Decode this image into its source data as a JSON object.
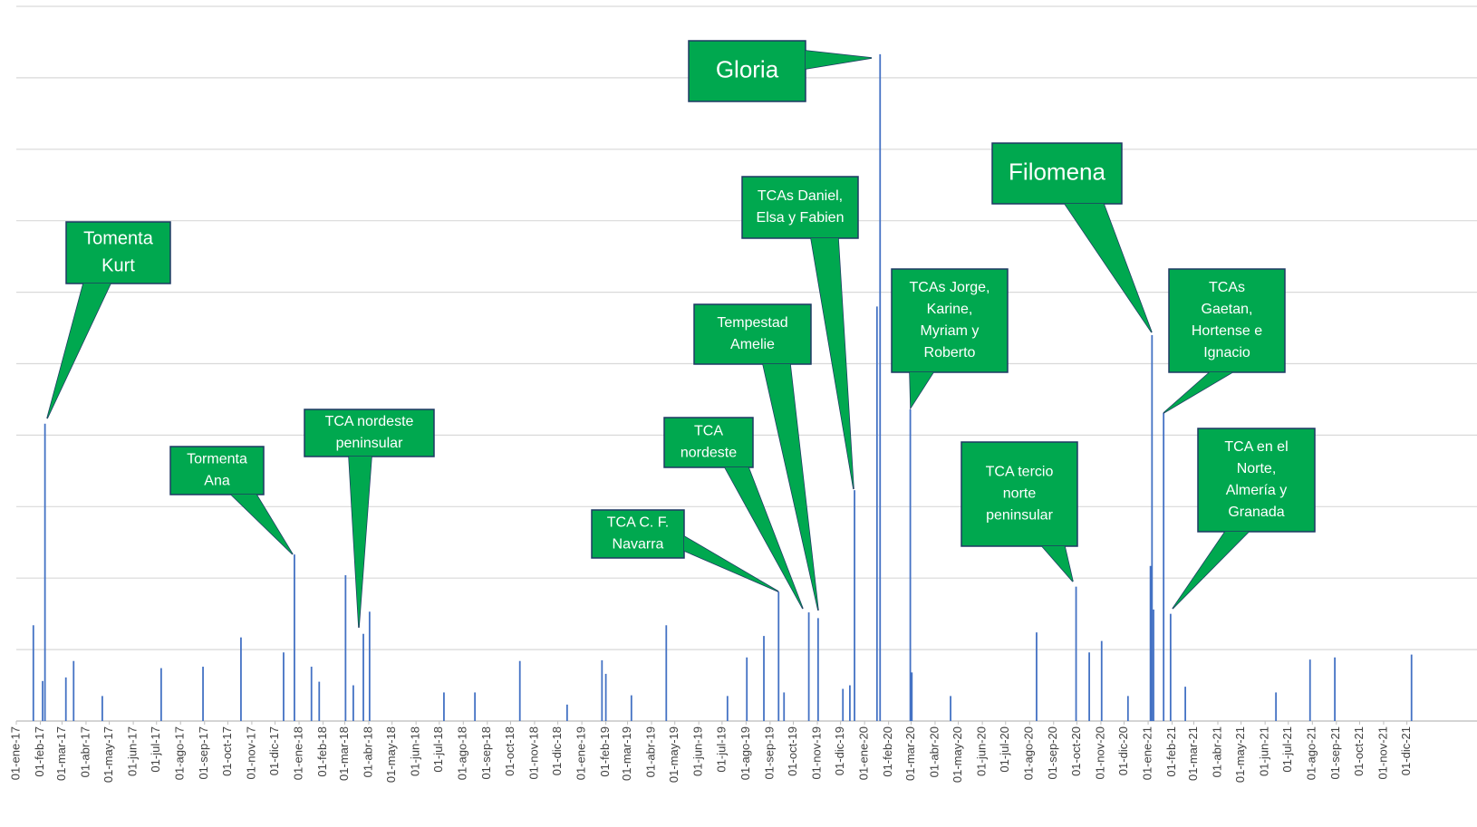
{
  "chart_data": {
    "type": "bar",
    "color": "#4472c4",
    "grid": true,
    "xlim": [
      "2017-01-01",
      "2021-12-19"
    ],
    "ylim": [
      0,
      10
    ],
    "yticks": [
      0,
      1,
      2,
      3,
      4,
      5,
      6,
      7,
      8,
      9,
      10
    ],
    "x": [
      "2017-01-23",
      "2017-02-04",
      "2017-02-07",
      "2017-03-06",
      "2017-03-16",
      "2017-04-22",
      "2017-07-07",
      "2017-08-30",
      "2017-10-18",
      "2017-12-12",
      "2017-12-26",
      "2018-01-17",
      "2018-01-27",
      "2018-03-02",
      "2018-03-12",
      "2018-03-25",
      "2018-04-02",
      "2018-07-07",
      "2018-08-16",
      "2018-10-13",
      "2018-12-13",
      "2019-01-27",
      "2019-02-01",
      "2019-03-06",
      "2019-04-20",
      "2019-07-08",
      "2019-08-02",
      "2019-08-24",
      "2019-09-12",
      "2019-09-19",
      "2019-10-21",
      "2019-11-02",
      "2019-12-04",
      "2019-12-13",
      "2019-12-19",
      "2020-01-17",
      "2020-01-21",
      "2020-02-29",
      "2020-03-02",
      "2020-04-21",
      "2020-08-10",
      "2020-09-30",
      "2020-10-17",
      "2020-11-02",
      "2020-12-06",
      "2021-01-04",
      "2021-01-06",
      "2021-01-08",
      "2021-01-21",
      "2021-01-30",
      "2021-02-18",
      "2021-06-15",
      "2021-07-29",
      "2021-08-30",
      "2021-12-07"
    ],
    "values": [
      1.34,
      0.56,
      4.16,
      0.61,
      0.84,
      0.35,
      0.74,
      0.76,
      1.17,
      0.96,
      2.33,
      0.76,
      0.55,
      2.04,
      0.5,
      1.22,
      1.53,
      0.4,
      0.4,
      0.84,
      0.23,
      0.85,
      0.66,
      0.36,
      1.34,
      0.35,
      0.89,
      1.19,
      1.81,
      0.4,
      1.52,
      1.44,
      0.45,
      0.5,
      3.23,
      5.8,
      9.33,
      4.36,
      0.68,
      0.35,
      1.24,
      1.88,
      0.96,
      1.12,
      0.35,
      2.17,
      5.4,
      1.56,
      4.31,
      1.5,
      0.48,
      0.4,
      0.86,
      0.89,
      0.93
    ],
    "xticks": [
      {
        "value": "2017-01-01",
        "label": "01-ene-17"
      },
      {
        "value": "2017-02-01",
        "label": "01-feb-17"
      },
      {
        "value": "2017-03-01",
        "label": "01-mar-17"
      },
      {
        "value": "2017-04-01",
        "label": "01-abr-17"
      },
      {
        "value": "2017-05-01",
        "label": "01-may-17"
      },
      {
        "value": "2017-06-01",
        "label": "01-jun-17"
      },
      {
        "value": "2017-07-01",
        "label": "01-jul-17"
      },
      {
        "value": "2017-08-01",
        "label": "01-ago-17"
      },
      {
        "value": "2017-09-01",
        "label": "01-sep-17"
      },
      {
        "value": "2017-10-01",
        "label": "01-oct-17"
      },
      {
        "value": "2017-11-01",
        "label": "01-nov-17"
      },
      {
        "value": "2017-12-01",
        "label": "01-dic-17"
      },
      {
        "value": "2018-01-01",
        "label": "01-ene-18"
      },
      {
        "value": "2018-02-01",
        "label": "01-feb-18"
      },
      {
        "value": "2018-03-01",
        "label": "01-mar-18"
      },
      {
        "value": "2018-04-01",
        "label": "01-abr-18"
      },
      {
        "value": "2018-05-01",
        "label": "01-may-18"
      },
      {
        "value": "2018-06-01",
        "label": "01-jun-18"
      },
      {
        "value": "2018-07-01",
        "label": "01-jul-18"
      },
      {
        "value": "2018-08-01",
        "label": "01-ago-18"
      },
      {
        "value": "2018-09-01",
        "label": "01-sep-18"
      },
      {
        "value": "2018-10-01",
        "label": "01-oct-18"
      },
      {
        "value": "2018-11-01",
        "label": "01-nov-18"
      },
      {
        "value": "2018-12-01",
        "label": "01-dic-18"
      },
      {
        "value": "2019-01-01",
        "label": "01-ene-19"
      },
      {
        "value": "2019-02-01",
        "label": "01-feb-19"
      },
      {
        "value": "2019-03-01",
        "label": "01-mar-19"
      },
      {
        "value": "2019-04-01",
        "label": "01-abr-19"
      },
      {
        "value": "2019-05-01",
        "label": "01-may-19"
      },
      {
        "value": "2019-06-01",
        "label": "01-jun-19"
      },
      {
        "value": "2019-07-01",
        "label": "01-jul-19"
      },
      {
        "value": "2019-08-01",
        "label": "01-ago-19"
      },
      {
        "value": "2019-09-01",
        "label": "01-sep-19"
      },
      {
        "value": "2019-10-01",
        "label": "01-oct-19"
      },
      {
        "value": "2019-11-01",
        "label": "01-nov-19"
      },
      {
        "value": "2019-12-01",
        "label": "01-dic-19"
      },
      {
        "value": "2020-01-01",
        "label": "01-ene-20"
      },
      {
        "value": "2020-02-01",
        "label": "01-feb-20"
      },
      {
        "value": "2020-03-01",
        "label": "01-mar-20"
      },
      {
        "value": "2020-04-01",
        "label": "01-abr-20"
      },
      {
        "value": "2020-05-01",
        "label": "01-may-20"
      },
      {
        "value": "2020-06-01",
        "label": "01-jun-20"
      },
      {
        "value": "2020-07-01",
        "label": "01-jul-20"
      },
      {
        "value": "2020-08-01",
        "label": "01-ago-20"
      },
      {
        "value": "2020-09-01",
        "label": "01-sep-20"
      },
      {
        "value": "2020-10-01",
        "label": "01-oct-20"
      },
      {
        "value": "2020-11-01",
        "label": "01-nov-20"
      },
      {
        "value": "2020-12-01",
        "label": "01-dic-20"
      },
      {
        "value": "2021-01-01",
        "label": "01-ene-21"
      },
      {
        "value": "2021-02-01",
        "label": "01-feb-21"
      },
      {
        "value": "2021-03-01",
        "label": "01-mar-21"
      },
      {
        "value": "2021-04-01",
        "label": "01-abr-21"
      },
      {
        "value": "2021-05-01",
        "label": "01-may-21"
      },
      {
        "value": "2021-06-01",
        "label": "01-jun-21"
      },
      {
        "value": "2021-07-01",
        "label": "01-jul-21"
      },
      {
        "value": "2021-08-01",
        "label": "01-ago-21"
      },
      {
        "value": "2021-09-01",
        "label": "01-sep-21"
      },
      {
        "value": "2021-10-01",
        "label": "01-oct-21"
      },
      {
        "value": "2021-11-01",
        "label": "01-nov-21"
      },
      {
        "value": "2021-12-01",
        "label": "01-dic-21"
      }
    ],
    "annotations": [
      {
        "lines": [
          "Tomenta",
          "Kurt"
        ]
      },
      {
        "lines": [
          "Tormenta",
          "Ana"
        ]
      },
      {
        "lines": [
          "TCA nordeste",
          "peninsular"
        ]
      },
      {
        "lines": [
          "TCA C. F.",
          "Navarra"
        ]
      },
      {
        "lines": [
          "TCA",
          "nordeste"
        ]
      },
      {
        "lines": [
          "Tempestad",
          "Amelie"
        ]
      },
      {
        "lines": [
          "TCAs Daniel,",
          "Elsa y Fabien"
        ]
      },
      {
        "lines": [
          "Gloria"
        ]
      },
      {
        "lines": [
          "TCAs Jorge,",
          "Karine,",
          "Myriam y",
          "Roberto"
        ]
      },
      {
        "lines": [
          "TCA tercio",
          "norte",
          "peninsular"
        ]
      },
      {
        "lines": [
          "Filomena"
        ]
      },
      {
        "lines": [
          "TCAs",
          "Gaetan,",
          "Hortense e",
          "Ignacio"
        ]
      },
      {
        "lines": [
          "TCA en el",
          "Norte,",
          "Almería y",
          "Granada"
        ]
      }
    ]
  }
}
